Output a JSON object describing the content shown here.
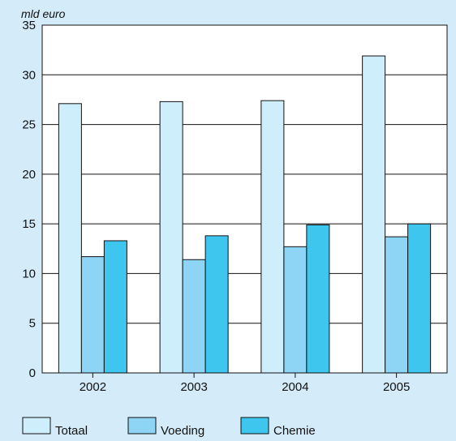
{
  "colors": {
    "background": "#d4ecf9",
    "plot_bg": "#ffffff",
    "grid": "#111111"
  },
  "chart_data": {
    "type": "bar",
    "unit_label": "mld euro",
    "categories": [
      "2002",
      "2003",
      "2004",
      "2005"
    ],
    "ylim": [
      0,
      35
    ],
    "yticks": [
      0,
      5,
      10,
      15,
      20,
      25,
      30,
      35
    ],
    "grid": true,
    "legend_position": "bottom",
    "series": [
      {
        "name": "Totaal",
        "color": "#cfeefb",
        "values": [
          27.1,
          27.3,
          27.4,
          31.9
        ]
      },
      {
        "name": "Voeding",
        "color": "#8dd4f5",
        "values": [
          11.7,
          11.4,
          12.7,
          13.7
        ]
      },
      {
        "name": "Chemie",
        "color": "#3ec6ef",
        "values": [
          13.3,
          13.8,
          14.9,
          15.0
        ]
      }
    ]
  }
}
